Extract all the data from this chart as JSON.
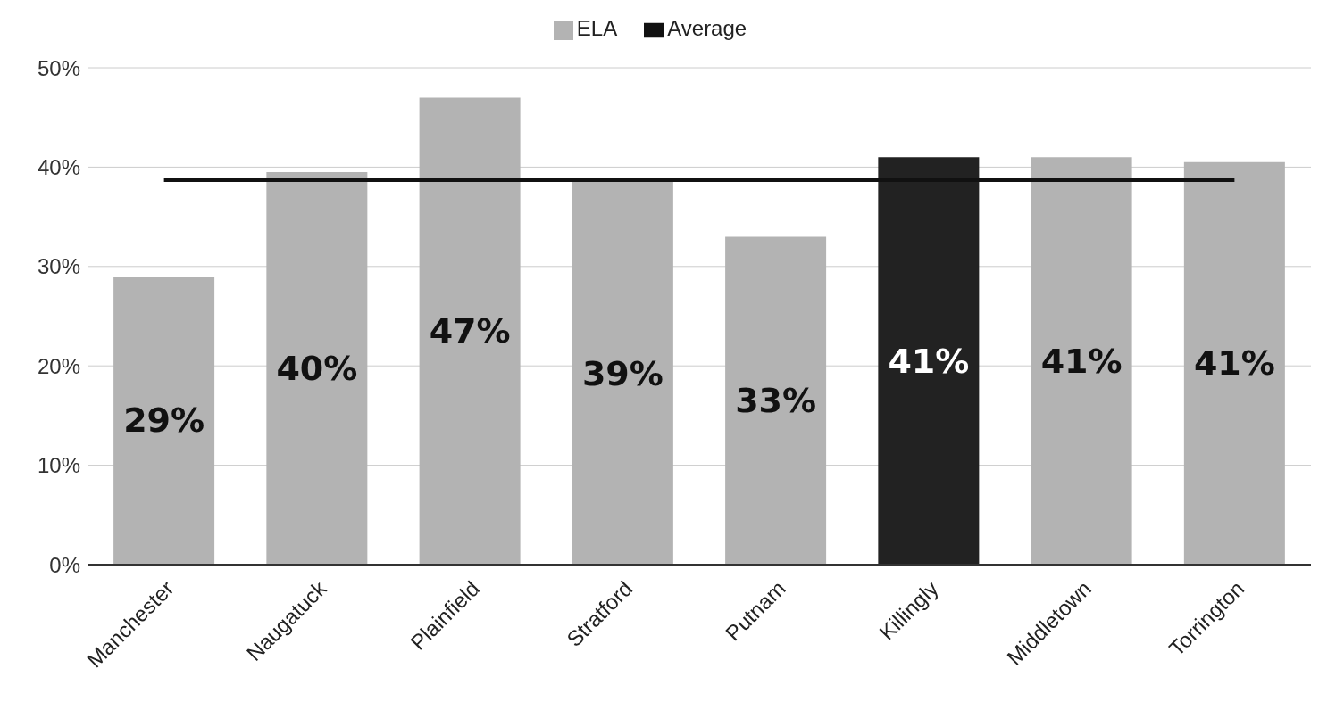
{
  "chart_data": {
    "type": "bar",
    "categories": [
      "Manchester",
      "Naugatuck",
      "Plainfield",
      "Stratford",
      "Putnam",
      "Killingly",
      "Middletown",
      "Torrington"
    ],
    "series": [
      {
        "name": "ELA",
        "color": "#b3b3b3",
        "colors": [
          "#b3b3b3",
          "#b3b3b3",
          "#b3b3b3",
          "#b3b3b3",
          "#b3b3b3",
          "#222222",
          "#b3b3b3",
          "#b3b3b3"
        ],
        "values": [
          29,
          39.5,
          47,
          38.5,
          33,
          41,
          41,
          40.5
        ],
        "value_labels": [
          "29%",
          "40%",
          "47%",
          "39%",
          "33%",
          "41%",
          "41%",
          "41%"
        ]
      },
      {
        "name": "Average",
        "type": "line",
        "color": "#111111",
        "values": [
          38.7,
          38.7,
          38.7,
          38.7,
          38.7,
          38.7,
          38.7,
          38.7
        ]
      }
    ],
    "ylim": [
      0,
      50
    ],
    "yticks": [
      {
        "value": 0,
        "label": "0%"
      },
      {
        "value": 10,
        "label": "10%"
      },
      {
        "value": 20,
        "label": "20%"
      },
      {
        "value": 30,
        "label": "30%"
      },
      {
        "value": 40,
        "label": "40%"
      },
      {
        "value": 50,
        "label": "50%"
      }
    ],
    "grid": "y",
    "legend": "top",
    "marker": "none"
  }
}
